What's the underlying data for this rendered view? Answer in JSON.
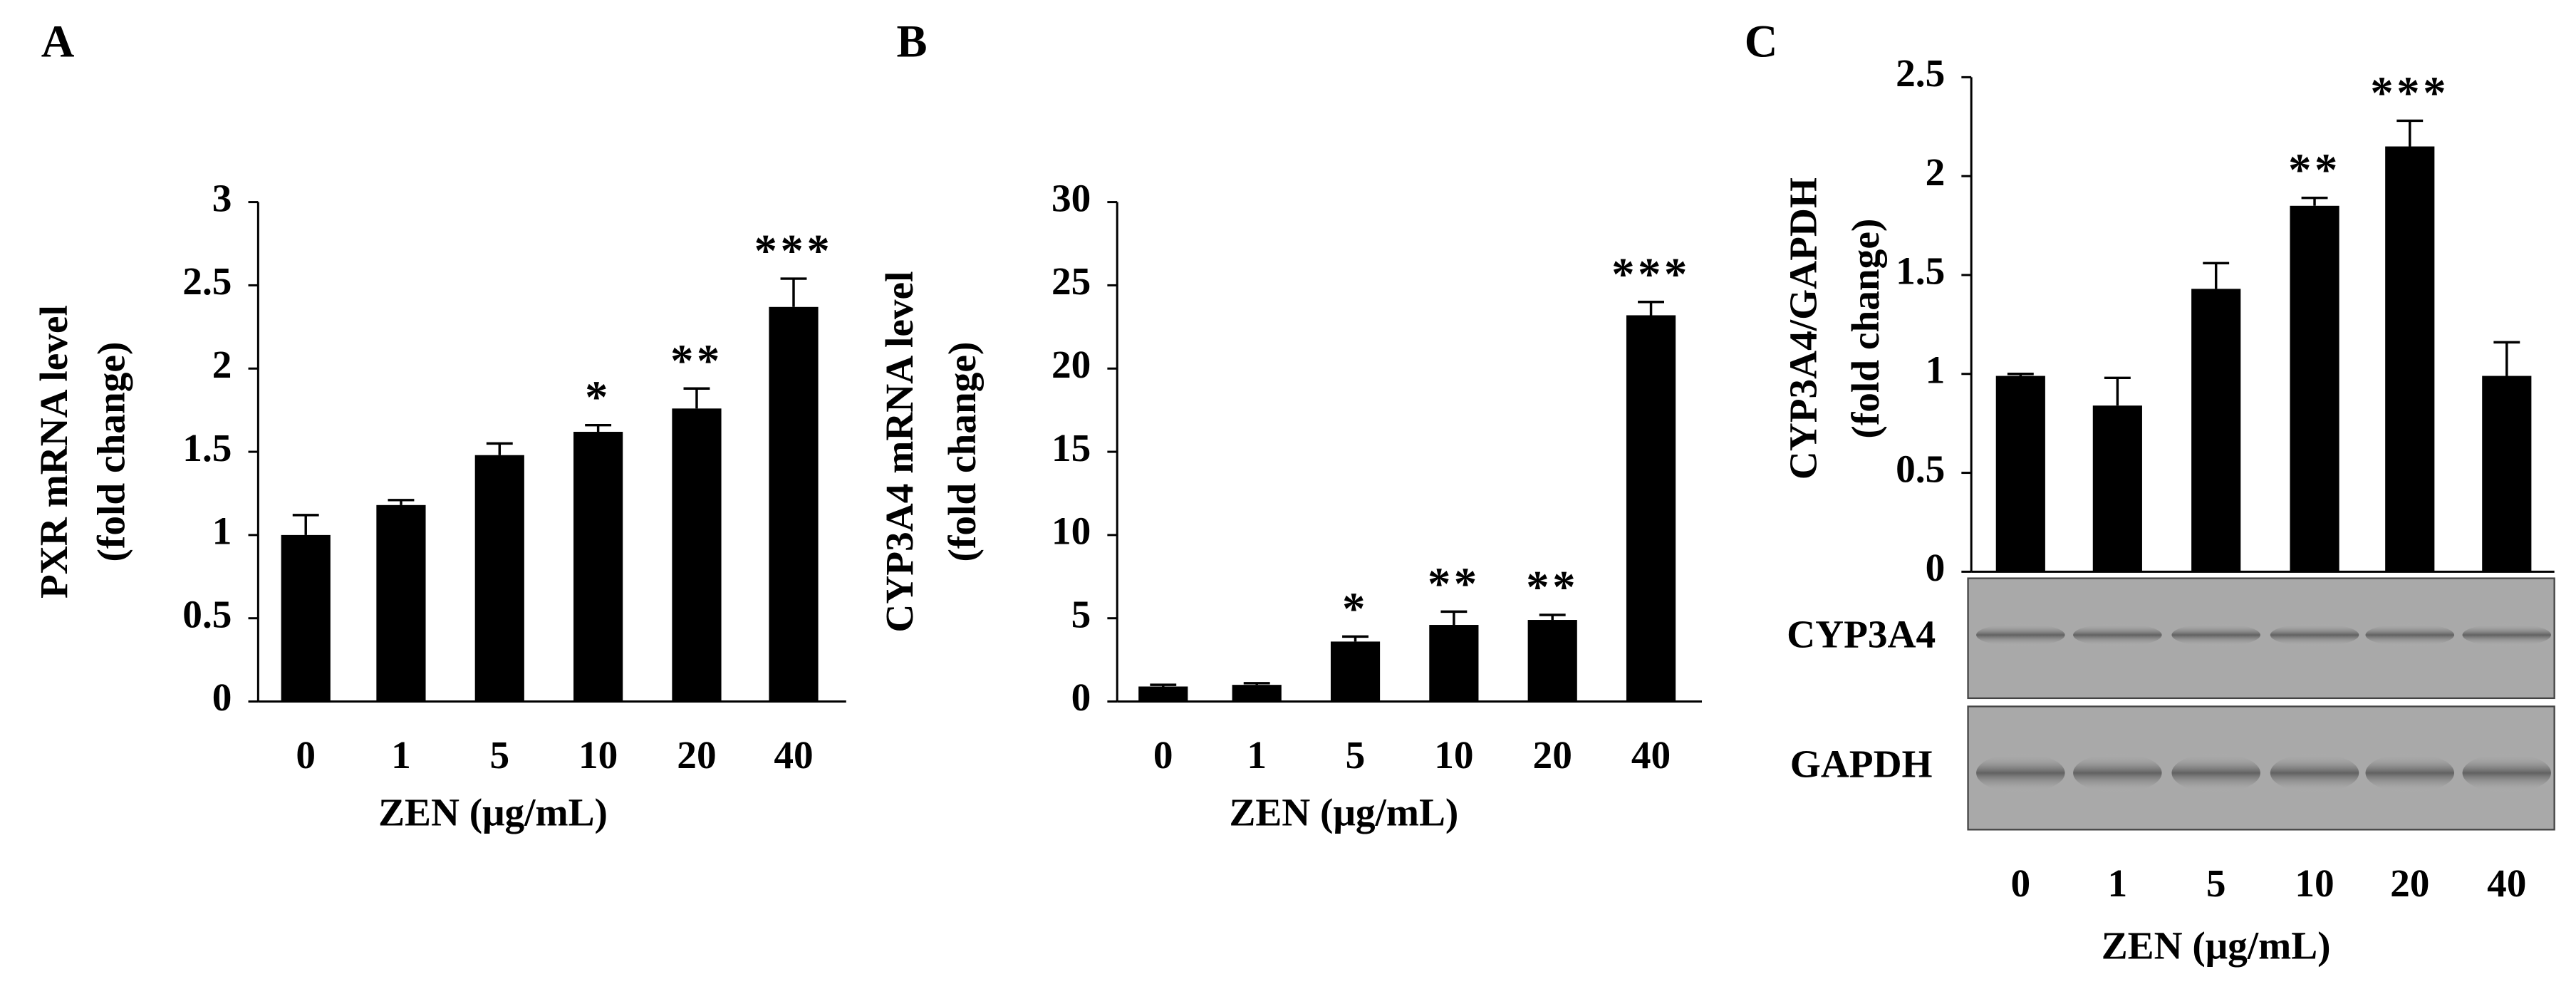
{
  "chart_data": [
    {
      "type": "bar",
      "panel_label": "A",
      "y_label_lines": [
        "PXR mRNA level",
        "(fold change)"
      ],
      "x_label": "ZEN (μg/mL)",
      "categories": [
        "0",
        "1",
        "5",
        "10",
        "20",
        "40"
      ],
      "values": [
        1.0,
        1.18,
        1.48,
        1.62,
        1.76,
        2.37
      ],
      "errors": [
        0.12,
        0.03,
        0.07,
        0.04,
        0.12,
        0.17
      ],
      "annotations": [
        null,
        null,
        null,
        "*",
        "**",
        "***"
      ],
      "color": "#000000",
      "ylim": [
        0,
        3
      ],
      "yticks": [
        0,
        0.5,
        1,
        1.5,
        2,
        2.5,
        3
      ]
    },
    {
      "type": "bar",
      "panel_label": "B",
      "y_label_lines": [
        "CYP3A4 mRNA level",
        "(fold change)"
      ],
      "x_label": "ZEN (μg/mL)",
      "categories": [
        "0",
        "1",
        "5",
        "10",
        "20",
        "40"
      ],
      "values": [
        0.9,
        1.0,
        3.6,
        4.6,
        4.9,
        23.2
      ],
      "errors": [
        0.1,
        0.1,
        0.3,
        0.8,
        0.3,
        0.8
      ],
      "annotations": [
        null,
        null,
        "*",
        "**",
        "**",
        "***"
      ],
      "color": "#000000",
      "ylim": [
        0,
        30
      ],
      "yticks": [
        0,
        5,
        10,
        15,
        20,
        25,
        30
      ]
    },
    {
      "type": "bar",
      "panel_label": "C",
      "y_label_lines": [
        "CYP3A4/GAPDH",
        "(fold change)"
      ],
      "x_label": "ZEN (μg/mL)",
      "categories": [
        "0",
        "1",
        "5",
        "10",
        "20",
        "40"
      ],
      "values": [
        0.99,
        0.84,
        1.43,
        1.85,
        2.15,
        0.99
      ],
      "errors": [
        0.01,
        0.14,
        0.13,
        0.04,
        0.13,
        0.17
      ],
      "annotations": [
        null,
        null,
        null,
        "**",
        "***",
        null
      ],
      "color": "#000000",
      "ylim": [
        0,
        2.5
      ],
      "yticks": [
        0,
        0.5,
        1,
        1.5,
        2,
        2.5
      ],
      "blot_labels": [
        "CYP3A4",
        "GAPDH"
      ]
    }
  ]
}
